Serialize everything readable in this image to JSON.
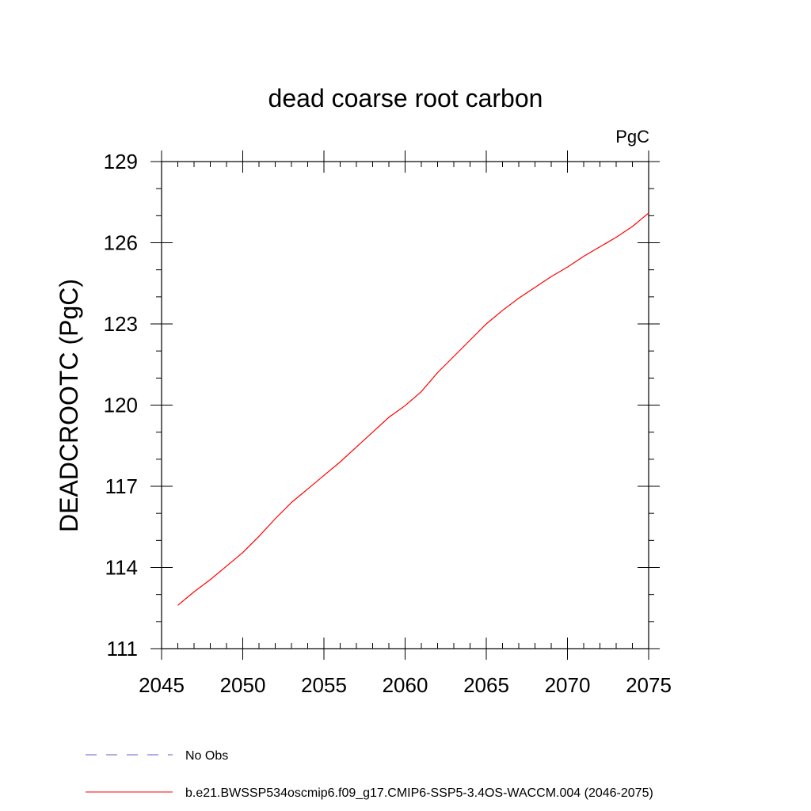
{
  "chart_data": {
    "type": "line",
    "title": "dead coarse root carbon",
    "units_label": "PgC",
    "xlabel": "",
    "ylabel": "DEADCROOTC  (PgC)",
    "xlim": [
      2045,
      2075
    ],
    "ylim": [
      111,
      129
    ],
    "xticks": [
      2045,
      2050,
      2055,
      2060,
      2065,
      2070,
      2075
    ],
    "yticks": [
      111,
      114,
      117,
      120,
      123,
      126,
      129
    ],
    "grid": false,
    "legend_position": "bottom-left",
    "legend": [
      {
        "label": "No Obs",
        "color": "#6a5acd",
        "dash": true
      },
      {
        "label": "b.e21.BWSSP534oscmip6.f09_g17.CMIP6-SSP5-3.4OS-WACCM.004 (2046-2075)",
        "color": "#ff0000",
        "dash": false
      }
    ],
    "series": [
      {
        "color": "#ff0000",
        "x": [
          2046,
          2047,
          2048,
          2049,
          2050,
          2051,
          2052,
          2053,
          2054,
          2055,
          2056,
          2057,
          2058,
          2059,
          2060,
          2061,
          2062,
          2063,
          2064,
          2065,
          2066,
          2067,
          2068,
          2069,
          2070,
          2071,
          2072,
          2073,
          2074,
          2075
        ],
        "values": [
          112.6,
          113.1,
          113.55,
          114.05,
          114.55,
          115.15,
          115.8,
          116.4,
          116.9,
          117.4,
          117.9,
          118.45,
          119.0,
          119.55,
          119.98,
          120.5,
          121.2,
          121.8,
          122.4,
          123.0,
          123.5,
          123.95,
          124.35,
          124.75,
          125.1,
          125.5,
          125.85,
          126.2,
          126.6,
          127.1
        ]
      }
    ]
  }
}
